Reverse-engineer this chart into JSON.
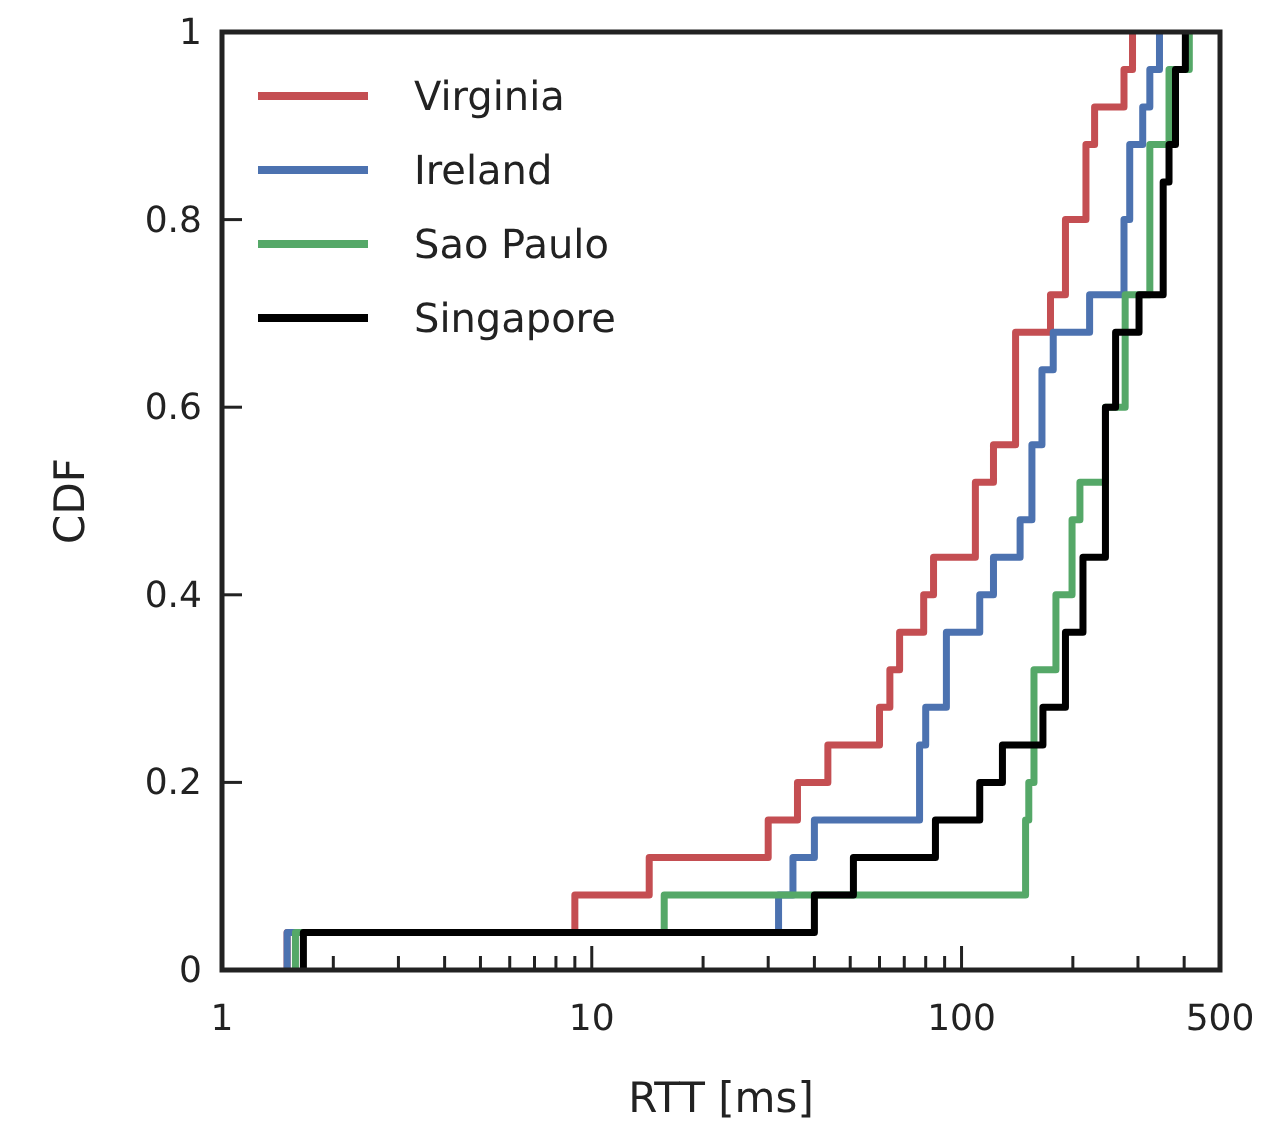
{
  "chart_data": {
    "type": "step",
    "xlabel": "RTT [ms]",
    "ylabel": "CDF",
    "log": "x",
    "xlim": [
      1,
      500
    ],
    "ylim": [
      0,
      1
    ],
    "xticks": [
      1,
      {
        "value": 2,
        "label": null
      },
      {
        "value": 3,
        "label": null
      },
      {
        "value": 4,
        "label": null
      },
      {
        "value": 5,
        "label": null
      },
      {
        "value": 6,
        "label": null
      },
      {
        "value": 7,
        "label": null
      },
      {
        "value": 8,
        "label": null
      },
      {
        "value": 9,
        "label": null
      },
      10,
      {
        "value": 20,
        "label": null
      },
      {
        "value": 30,
        "label": null
      },
      {
        "value": 40,
        "label": null
      },
      {
        "value": 50,
        "label": null
      },
      {
        "value": 60,
        "label": null
      },
      {
        "value": 70,
        "label": null
      },
      {
        "value": 80,
        "label": null
      },
      {
        "value": 90,
        "label": null
      },
      100,
      {
        "value": 200,
        "label": null
      },
      {
        "value": 300,
        "label": null
      },
      {
        "value": 400,
        "label": null
      },
      500
    ],
    "yticks": [
      0,
      0.2,
      0.4,
      0.6,
      0.8,
      1
    ],
    "grid": false,
    "legend": "top left",
    "line_style": "solid",
    "marker": "none",
    "series": [
      {
        "name": "Virginia",
        "color": "#c44e52",
        "x": [
          1.5,
          1.5,
          9,
          14.3,
          30,
          36,
          43.5,
          60,
          64,
          68,
          79,
          84,
          109,
          122,
          140,
          174,
          191,
          217,
          229,
          275,
          290
        ],
        "values": [
          0,
          0.04,
          0.08,
          0.12,
          0.16,
          0.2,
          0.24,
          0.28,
          0.32,
          0.36,
          0.4,
          0.44,
          0.52,
          0.56,
          0.68,
          0.72,
          0.8,
          0.88,
          0.92,
          0.96,
          1
        ]
      },
      {
        "name": "Ireland",
        "color": "#4c72b0",
        "x": [
          1.5,
          1.5,
          32,
          35,
          40,
          77,
          80,
          91,
          112,
          122,
          144,
          155,
          165,
          177,
          222,
          275,
          285,
          309,
          323,
          343
        ],
        "values": [
          0,
          0.04,
          0.08,
          0.12,
          0.16,
          0.24,
          0.28,
          0.36,
          0.4,
          0.44,
          0.48,
          0.56,
          0.64,
          0.68,
          0.72,
          0.8,
          0.88,
          0.92,
          0.96,
          1
        ]
      },
      {
        "name": "Sao Paulo",
        "color": "#55a868",
        "x": [
          1.58,
          1.58,
          15.7,
          149,
          152,
          157,
          180,
          199,
          209,
          245,
          277,
          323,
          364,
          413
        ],
        "values": [
          0,
          0.04,
          0.08,
          0.16,
          0.2,
          0.32,
          0.4,
          0.48,
          0.52,
          0.6,
          0.72,
          0.88,
          0.96,
          1
        ]
      },
      {
        "name": "Singapore",
        "color": "#000000",
        "x": [
          1.66,
          1.66,
          40,
          51,
          85,
          112,
          129,
          166,
          191,
          213,
          245,
          261,
          302,
          351,
          364,
          379,
          403
        ],
        "values": [
          0,
          0.04,
          0.08,
          0.12,
          0.16,
          0.2,
          0.24,
          0.28,
          0.36,
          0.44,
          0.6,
          0.68,
          0.72,
          0.84,
          0.88,
          0.96,
          1
        ]
      }
    ]
  }
}
